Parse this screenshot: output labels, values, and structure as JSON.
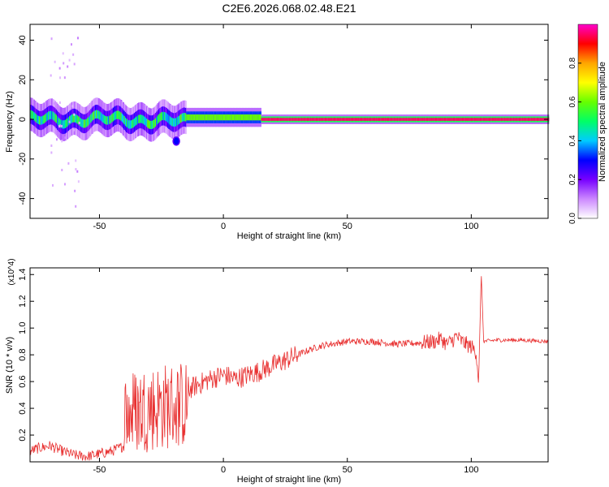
{
  "figure_title": "C2E6.2026.068.02.48.E21",
  "chart_data": [
    {
      "type": "heatmap",
      "title": "C2E6.2026.068.02.48.E21",
      "xlabel": "Height of straight line (km)",
      "ylabel": "Frequency (Hz)",
      "xlim": [
        -78,
        131
      ],
      "ylim": [
        -50,
        48
      ],
      "xticks": [
        -50,
        0,
        50,
        100
      ],
      "yticks": [
        -40,
        -20,
        0,
        20,
        40
      ],
      "colorbar": {
        "label": "Normalized spectral amplitude",
        "range": [
          0,
          1
        ],
        "ticks": [
          0.0,
          0.2,
          0.4,
          0.6,
          0.8
        ],
        "colormap": [
          "#ffffff",
          "#cc88ff",
          "#7700ff",
          "#0000ff",
          "#00ccff",
          "#00ff66",
          "#66ff00",
          "#ffff00",
          "#ffa500",
          "#ff0000",
          "#ff00cc"
        ]
      },
      "ridge": {
        "description": "dominant signal band near 0 Hz",
        "segments": [
          {
            "x_start": -78,
            "x_end": -15,
            "center_hz": 0,
            "spread_hz": 6,
            "amplitude": 0.3
          },
          {
            "x_start": -15,
            "x_end": 15,
            "center_hz": 1,
            "spread_hz": 3,
            "amplitude": 0.6
          },
          {
            "x_start": 15,
            "x_end": 131,
            "center_hz": 0,
            "spread_hz": 1.5,
            "amplitude": 0.95
          }
        ],
        "blobs": [
          {
            "x": -19,
            "y": -11,
            "amplitude": 0.3
          }
        ]
      }
    },
    {
      "type": "line",
      "xlabel": "Height of straight line (km)",
      "ylabel": "SNR (10 * v/v)",
      "y_multiplier": "(x10^4)",
      "xlim": [
        -78,
        131
      ],
      "ylim": [
        0.0,
        1.45
      ],
      "xticks": [
        -50,
        0,
        50,
        100
      ],
      "yticks": [
        0.2,
        0.4,
        0.6,
        0.8,
        1.0,
        1.2,
        1.4
      ],
      "color": "#e83030",
      "series": [
        {
          "name": "SNR",
          "x": [
            -78,
            -75,
            -70,
            -65,
            -60,
            -55,
            -50,
            -45,
            -40,
            -37,
            -34,
            -31,
            -28,
            -25,
            -22,
            -19,
            -16,
            -13,
            -10,
            -5,
            0,
            5,
            10,
            15,
            20,
            25,
            30,
            35,
            40,
            50,
            60,
            70,
            80,
            85,
            88,
            90,
            92,
            94,
            96,
            98,
            100,
            102,
            103,
            104,
            105,
            110,
            120,
            131
          ],
          "y": [
            0.08,
            0.1,
            0.12,
            0.08,
            0.05,
            0.04,
            0.06,
            0.08,
            0.12,
            0.2,
            0.28,
            0.35,
            0.38,
            0.42,
            0.45,
            0.45,
            0.5,
            0.55,
            0.58,
            0.62,
            0.65,
            0.62,
            0.65,
            0.68,
            0.72,
            0.76,
            0.8,
            0.84,
            0.87,
            0.9,
            0.9,
            0.88,
            0.89,
            0.9,
            0.92,
            0.88,
            0.9,
            0.94,
            0.9,
            0.88,
            0.86,
            0.82,
            0.6,
            1.42,
            0.9,
            0.91,
            0.91,
            0.9
          ]
        }
      ],
      "noise_amplitude": [
        {
          "x_start": -78,
          "x_end": -40,
          "amp": 0.04
        },
        {
          "x_start": -40,
          "x_end": -14,
          "amp": 0.3
        },
        {
          "x_start": -14,
          "x_end": 30,
          "amp": 0.08
        },
        {
          "x_start": 30,
          "x_end": 80,
          "amp": 0.025
        },
        {
          "x_start": 80,
          "x_end": 103,
          "amp": 0.06
        },
        {
          "x_start": 103,
          "x_end": 105,
          "amp": 0.0
        },
        {
          "x_start": 105,
          "x_end": 131,
          "amp": 0.015
        }
      ]
    }
  ]
}
